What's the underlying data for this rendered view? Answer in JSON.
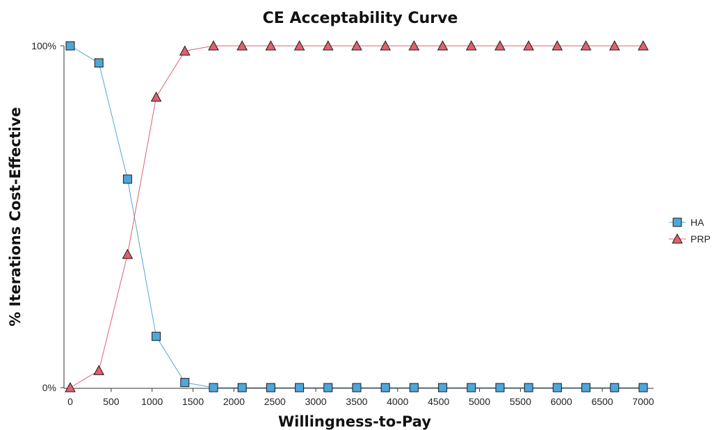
{
  "chart_data": {
    "type": "line",
    "title": "CE Acceptability Curve",
    "xlabel": "Willingness-to-Pay",
    "ylabel": "% Iterations Cost-Effective",
    "xlim": [
      0,
      7000
    ],
    "ylim": [
      0,
      1
    ],
    "x_ticks": [
      0,
      500,
      1000,
      1500,
      2000,
      2500,
      3000,
      3500,
      4000,
      4500,
      5000,
      5500,
      6000,
      6500,
      7000
    ],
    "x_tick_labels": [
      "0",
      "500",
      "1000",
      "1500",
      "2000",
      "2500",
      "3000",
      "3500",
      "4000",
      "4500",
      "5000",
      "5500",
      "6000",
      "6500",
      "7000"
    ],
    "y_ticks": [
      0,
      1
    ],
    "y_tick_labels": [
      "0%",
      "100%"
    ],
    "grid": false,
    "legend_position": "right",
    "x": [
      0,
      350,
      700,
      1050,
      1400,
      1750,
      2100,
      2450,
      2800,
      3150,
      3500,
      3850,
      4200,
      4550,
      4900,
      5250,
      5600,
      5950,
      6300,
      6650,
      7000
    ],
    "series": [
      {
        "name": "HA",
        "marker": "square",
        "color": "#4fa6d9",
        "values": [
          1.0,
          0.95,
          0.61,
          0.15,
          0.015,
          0.0,
          0.0,
          0.0,
          0.0,
          0.0,
          0.0,
          0.0,
          0.0,
          0.0,
          0.0,
          0.0,
          0.0,
          0.0,
          0.0,
          0.0,
          0.0
        ]
      },
      {
        "name": "PRP",
        "marker": "triangle",
        "color": "#e0606e",
        "values": [
          0.0,
          0.05,
          0.39,
          0.85,
          0.985,
          1.0,
          1.0,
          1.0,
          1.0,
          1.0,
          1.0,
          1.0,
          1.0,
          1.0,
          1.0,
          1.0,
          1.0,
          1.0,
          1.0,
          1.0,
          1.0
        ]
      }
    ]
  }
}
